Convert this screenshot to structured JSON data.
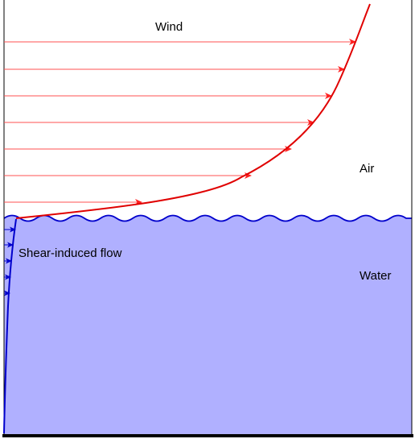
{
  "labels": {
    "wind": "Wind",
    "air": "Air",
    "shear_flow": "Shear-induced flow",
    "water": "Water"
  },
  "colors": {
    "water_fill": "#b0b0ff",
    "water_line": "#0000cc",
    "wind_profile": "#e00000",
    "wind_arrows": "#ff5050",
    "bottom": "#000000",
    "frame": "#000000"
  }
}
